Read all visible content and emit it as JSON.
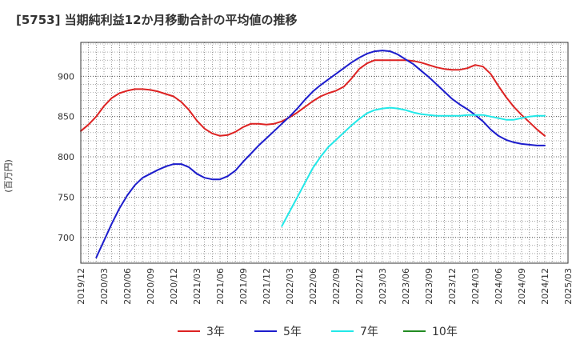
{
  "chart_data": {
    "type": "line",
    "title": "[5753]  当期純利益12か月移動合計の平均値の推移",
    "ylabel": "(百万円)",
    "xlabel": "",
    "ylim": [
      668,
      942
    ],
    "yticks": [
      700,
      750,
      800,
      850,
      900
    ],
    "x_tick_labels": [
      "2019/12",
      "2020/03",
      "2020/06",
      "2020/09",
      "2020/12",
      "2021/03",
      "2021/06",
      "2021/09",
      "2021/12",
      "2022/03",
      "2022/06",
      "2022/09",
      "2022/12",
      "2023/03",
      "2023/06",
      "2023/09",
      "2023/12",
      "2024/03",
      "2024/06",
      "2024/09",
      "2024/12",
      "2025/03"
    ],
    "grid": true,
    "legend_position": "bottom",
    "series": [
      {
        "name": "3年",
        "color": "#dd2222",
        "x": [
          "2019/12",
          "2020/01",
          "2020/02",
          "2020/03",
          "2020/04",
          "2020/05",
          "2020/06",
          "2020/07",
          "2020/08",
          "2020/09",
          "2020/10",
          "2020/11",
          "2020/12",
          "2021/01",
          "2021/02",
          "2021/03",
          "2021/04",
          "2021/05",
          "2021/06",
          "2021/07",
          "2021/08",
          "2021/09",
          "2021/10",
          "2021/11",
          "2021/12",
          "2022/01",
          "2022/02",
          "2022/03",
          "2022/04",
          "2022/05",
          "2022/06",
          "2022/07",
          "2022/08",
          "2022/09",
          "2022/10",
          "2022/11",
          "2022/12",
          "2023/01",
          "2023/02",
          "2023/03",
          "2023/04",
          "2023/05",
          "2023/06",
          "2023/07",
          "2023/08",
          "2023/09",
          "2023/10",
          "2023/11",
          "2023/12",
          "2024/01",
          "2024/02",
          "2024/03",
          "2024/04",
          "2024/05",
          "2024/06",
          "2024/07",
          "2024/08",
          "2024/09",
          "2024/10",
          "2024/11",
          "2024/12"
        ],
        "values": [
          832,
          840,
          850,
          863,
          873,
          879,
          882,
          884,
          884,
          883,
          881,
          878,
          875,
          868,
          858,
          845,
          835,
          829,
          826,
          827,
          831,
          837,
          841,
          841,
          840,
          841,
          844,
          849,
          855,
          862,
          869,
          875,
          879,
          882,
          887,
          897,
          909,
          916,
          920,
          920,
          920,
          920,
          920,
          919,
          917,
          914,
          911,
          909,
          908,
          908,
          910,
          914,
          912,
          903,
          888,
          874,
          862,
          852,
          843,
          834,
          826
        ]
      },
      {
        "name": "5年",
        "color": "#1c1ccc",
        "x": [
          "2020/02",
          "2020/03",
          "2020/04",
          "2020/05",
          "2020/06",
          "2020/07",
          "2020/08",
          "2020/09",
          "2020/10",
          "2020/11",
          "2020/12",
          "2021/01",
          "2021/02",
          "2021/03",
          "2021/04",
          "2021/05",
          "2021/06",
          "2021/07",
          "2021/08",
          "2021/09",
          "2021/10",
          "2021/11",
          "2021/12",
          "2022/01",
          "2022/02",
          "2022/03",
          "2022/04",
          "2022/05",
          "2022/06",
          "2022/07",
          "2022/08",
          "2022/09",
          "2022/10",
          "2022/11",
          "2022/12",
          "2023/01",
          "2023/02",
          "2023/03",
          "2023/04",
          "2023/05",
          "2023/06",
          "2023/07",
          "2023/08",
          "2023/09",
          "2023/10",
          "2023/11",
          "2023/12",
          "2024/01",
          "2024/02",
          "2024/03",
          "2024/04",
          "2024/05",
          "2024/06",
          "2024/07",
          "2024/08",
          "2024/09",
          "2024/10",
          "2024/11",
          "2024/12"
        ],
        "values": [
          675,
          696,
          717,
          736,
          752,
          765,
          774,
          779,
          784,
          788,
          791,
          791,
          787,
          779,
          774,
          772,
          772,
          776,
          783,
          794,
          804,
          814,
          823,
          832,
          841,
          850,
          860,
          871,
          881,
          889,
          896,
          903,
          910,
          917,
          923,
          928,
          931,
          932,
          931,
          927,
          921,
          915,
          907,
          899,
          890,
          881,
          872,
          865,
          859,
          852,
          844,
          834,
          826,
          821,
          818,
          816,
          815,
          814,
          814
        ]
      },
      {
        "name": "7年",
        "color": "#22e8e8",
        "x": [
          "2022/02",
          "2022/03",
          "2022/04",
          "2022/05",
          "2022/06",
          "2022/07",
          "2022/08",
          "2022/09",
          "2022/10",
          "2022/11",
          "2022/12",
          "2023/01",
          "2023/02",
          "2023/03",
          "2023/04",
          "2023/05",
          "2023/06",
          "2023/07",
          "2023/08",
          "2023/09",
          "2023/10",
          "2023/11",
          "2023/12",
          "2024/01",
          "2024/02",
          "2024/03",
          "2024/04",
          "2024/05",
          "2024/06",
          "2024/07",
          "2024/08",
          "2024/09",
          "2024/10",
          "2024/11",
          "2024/12"
        ],
        "values": [
          714,
          732,
          750,
          768,
          786,
          800,
          812,
          821,
          830,
          839,
          847,
          854,
          858,
          860,
          861,
          860,
          858,
          855,
          853,
          852,
          851,
          851,
          851,
          851,
          852,
          852,
          852,
          850,
          848,
          846,
          846,
          848,
          850,
          851,
          851
        ]
      },
      {
        "name": "10年",
        "color": "#228b22",
        "x": [],
        "values": []
      }
    ]
  }
}
